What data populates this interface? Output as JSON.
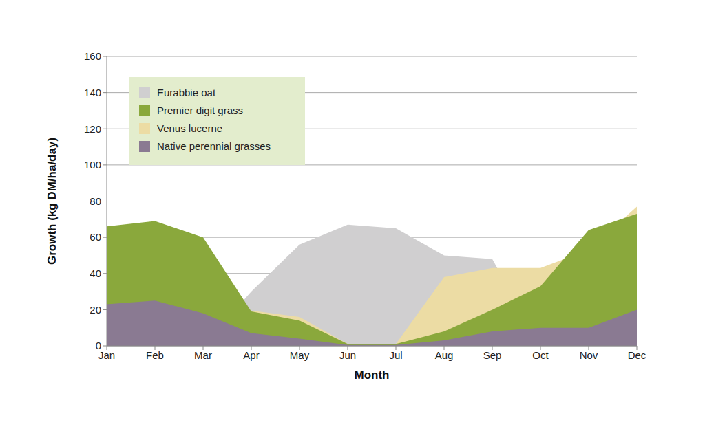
{
  "chart_data": {
    "type": "area",
    "x_label": "Month",
    "y_label": "Growth (kg DM/ha/day)",
    "categories": [
      "Jan",
      "Feb",
      "Mar",
      "Apr",
      "May",
      "Jun",
      "Jul",
      "Aug",
      "Sep",
      "Oct",
      "Nov",
      "Dec"
    ],
    "series": [
      {
        "name": "Eurabbie oat",
        "color": "#d0cfd0",
        "values": [
          null,
          null,
          0,
          30,
          56,
          67,
          65,
          50,
          48,
          0,
          null,
          null
        ]
      },
      {
        "name": "Premier digit grass",
        "color": "#8aa83c",
        "values": [
          66,
          69,
          60,
          19,
          14,
          1,
          1,
          8,
          20,
          33,
          64,
          73
        ]
      },
      {
        "name": "Venus lucerne",
        "color": "#ecdca4",
        "values": [
          null,
          null,
          null,
          19.5,
          16,
          1,
          1,
          38,
          43,
          43,
          53,
          77
        ]
      },
      {
        "name": "Native perennial grasses",
        "color": "#8a7a92",
        "values": [
          23,
          25,
          18,
          7,
          4,
          0.5,
          0.5,
          3,
          8,
          10,
          10,
          20
        ]
      }
    ],
    "ylim": [
      0,
      160
    ],
    "yticks": [
      0,
      20,
      40,
      60,
      80,
      100,
      120,
      140,
      160
    ],
    "grid": true,
    "legend": "upper left",
    "stacked": false
  }
}
